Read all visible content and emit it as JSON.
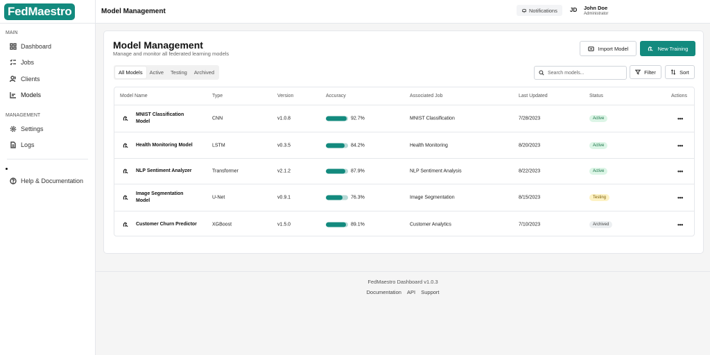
{
  "app": {
    "logo": "FedMaestro"
  },
  "sidebar": {
    "sections": [
      {
        "label": "MAIN"
      },
      {
        "label": "MANAGEMENT"
      }
    ],
    "main_items": [
      {
        "label": "Dashboard",
        "icon": "grid-icon"
      },
      {
        "label": "Jobs",
        "icon": "list-checks-icon"
      },
      {
        "label": "Clients",
        "icon": "users-icon"
      },
      {
        "label": "Models",
        "icon": "chart-icon"
      }
    ],
    "management_items": [
      {
        "label": "Settings",
        "icon": "gear-icon"
      },
      {
        "label": "Logs",
        "icon": "document-icon"
      }
    ],
    "help": {
      "label": "Help & Documentation",
      "icon": "help-circle-icon"
    }
  },
  "header": {
    "title": "Model Management",
    "notifications_label": "Notifications",
    "user_initials": "JD",
    "user_name": "John Doe",
    "user_role": "Administrator"
  },
  "page": {
    "title": "Model Management",
    "subtitle": "Manage and monitor all federated learning models",
    "import_label": "Import Model",
    "new_training_label": "New Training",
    "tabs": [
      "All Models",
      "Active",
      "Testing",
      "Archived"
    ],
    "search_placeholder": "Search models...",
    "filter_label": "Filter",
    "sort_label": "Sort"
  },
  "table": {
    "columns": [
      "Model Name",
      "Type",
      "Version",
      "Accuracy",
      "Associated Job",
      "Last Updated",
      "Status",
      "Actions"
    ],
    "rows": [
      {
        "name": "MNIST Classification Model",
        "type": "CNN",
        "version": "v1.0.8",
        "accuracy": "92.7%",
        "accuracy_value": 0.927,
        "job": "MNIST Classification",
        "updated": "7/28/2023",
        "status": "Active",
        "status_kind": "active"
      },
      {
        "name": "Health Monitoring Model",
        "type": "LSTM",
        "version": "v0.3.5",
        "accuracy": "84.2%",
        "accuracy_value": 0.842,
        "job": "Health Monitoring",
        "updated": "8/20/2023",
        "status": "Active",
        "status_kind": "active"
      },
      {
        "name": "NLP Sentiment Analyzer",
        "type": "Transformer",
        "version": "v2.1.2",
        "accuracy": "87.9%",
        "accuracy_value": 0.879,
        "job": "NLP Sentiment Analysis",
        "updated": "8/22/2023",
        "status": "Active",
        "status_kind": "active"
      },
      {
        "name": "Image Segmentation Model",
        "type": "U-Net",
        "version": "v0.9.1",
        "accuracy": "76.3%",
        "accuracy_value": 0.763,
        "job": "Image Segmentation",
        "updated": "8/15/2023",
        "status": "Testing",
        "status_kind": "testing"
      },
      {
        "name": "Customer Churn Predictor",
        "type": "XGBoost",
        "version": "v1.5.0",
        "accuracy": "89.1%",
        "accuracy_value": 0.891,
        "job": "Customer Analytics",
        "updated": "7/10/2023",
        "status": "Archived",
        "status_kind": "archived"
      }
    ],
    "actions_glyph": "•••"
  },
  "footer": {
    "version": "FedMaestro Dashboard v1.0.3",
    "links": [
      "Documentation",
      "API",
      "Support"
    ]
  },
  "colors": {
    "accent": "#138a7e"
  }
}
